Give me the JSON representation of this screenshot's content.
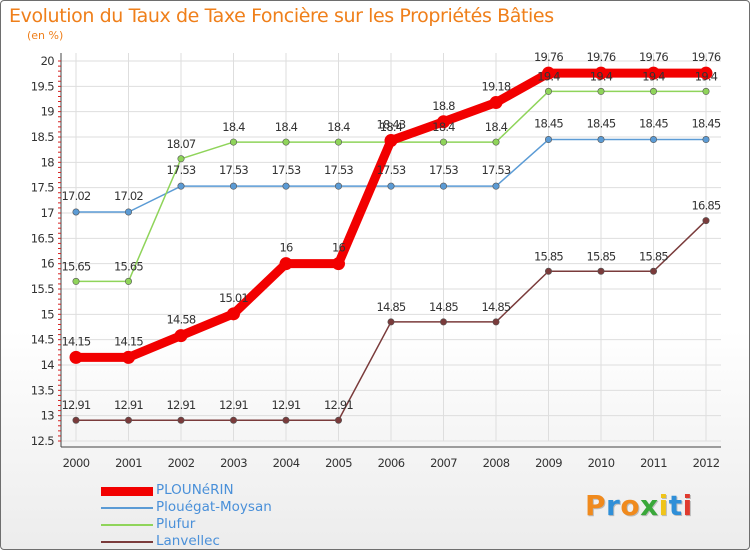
{
  "title": "Evolution du Taux de Taxe Foncière sur les Propriétés Bâties",
  "unit": "(en %)",
  "brand": {
    "text": "Proxiti",
    "colors": [
      "#f08a1d",
      "#2f8fd8",
      "#f08a1d",
      "#3aa83a",
      "#f0c419",
      "#2f8fd8",
      "#e03a2e"
    ]
  },
  "chart_data": {
    "type": "line",
    "title": "Evolution du Taux de Taxe Foncière sur les Propriétés Bâties",
    "xlabel": "",
    "ylabel": "(en %)",
    "x": [
      "2000",
      "2001",
      "2002",
      "2003",
      "2004",
      "2005",
      "2006",
      "2007",
      "2008",
      "2009",
      "2010",
      "2011",
      "2012"
    ],
    "ylim": [
      12.5,
      20
    ],
    "yticks": [
      "12.5",
      "13",
      "13.5",
      "14",
      "14.5",
      "15",
      "15.5",
      "16",
      "16.5",
      "17",
      "17.5",
      "18",
      "18.5",
      "19",
      "19.5",
      "20"
    ],
    "grid": true,
    "series": [
      {
        "name": "PLOUNéRIN",
        "color": "#f20000",
        "values": [
          14.15,
          14.15,
          14.58,
          15.01,
          16,
          16,
          18.43,
          18.8,
          19.18,
          19.76,
          19.76,
          19.76,
          19.76
        ],
        "labels": [
          "14.15",
          "14.15",
          "14.58",
          "15.01",
          "16",
          "16",
          "18.43",
          "18.8",
          "19.18",
          "19.76",
          "19.76",
          "19.76",
          "19.76"
        ]
      },
      {
        "name": "Plouégat-Moysan",
        "color": "#5b9bd5",
        "values": [
          17.02,
          17.02,
          17.53,
          17.53,
          17.53,
          17.53,
          17.53,
          17.53,
          17.53,
          18.45,
          18.45,
          18.45,
          18.45
        ],
        "labels": [
          "17.02",
          "17.02",
          "17.53",
          "17.53",
          "17.53",
          "17.53",
          "17.53",
          "17.53",
          "17.53",
          "18.45",
          "18.45",
          "18.45",
          "18.45"
        ]
      },
      {
        "name": "Plufur",
        "color": "#8fd45a",
        "values": [
          15.65,
          15.65,
          18.07,
          18.4,
          18.4,
          18.4,
          18.4,
          18.4,
          18.4,
          19.4,
          19.4,
          19.4,
          19.4
        ],
        "labels": [
          "15.65",
          "15.65",
          "18.07",
          "18.4",
          "18.4",
          "18.4",
          "18.4",
          "18.4",
          "18.4",
          "19.4",
          "19.4",
          "19.4",
          "19.4"
        ]
      },
      {
        "name": "Lanvellec",
        "color": "#7a3b3b",
        "values": [
          12.91,
          12.91,
          12.91,
          12.91,
          12.91,
          12.91,
          14.85,
          14.85,
          14.85,
          15.85,
          15.85,
          15.85,
          16.85
        ],
        "labels": [
          "12.91",
          "12.91",
          "12.91",
          "12.91",
          "12.91",
          "12.91",
          "14.85",
          "14.85",
          "14.85",
          "15.85",
          "15.85",
          "15.85",
          "16.85"
        ]
      }
    ]
  }
}
